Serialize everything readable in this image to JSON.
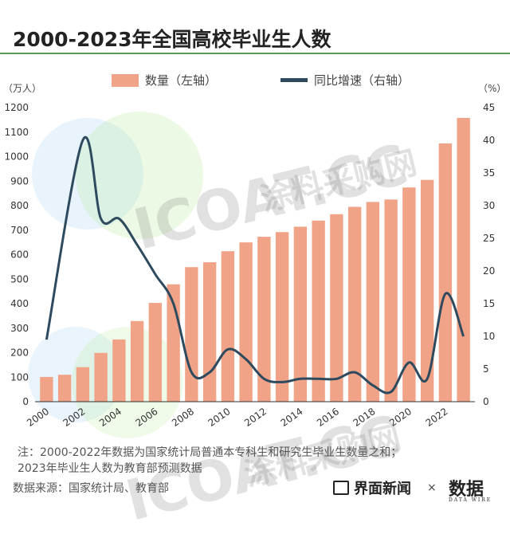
{
  "header": {
    "title": "2000-2023年全国高校毕业生人数"
  },
  "legend": {
    "bar_label": "数量（左轴）",
    "line_label": "同比增速（右轴）"
  },
  "axes": {
    "left_unit": "（万人）",
    "right_unit": "（%）"
  },
  "footnote": {
    "line1": "注：2000-2022年数据为国家统计局普通本专科生和研究生毕业生数量之和；",
    "line2": "2023年毕业生人数为教育部预测数据"
  },
  "source": "数据来源：国家统计局、教育部",
  "branding": {
    "name": "界面新闻",
    "times": "×",
    "logo_text": "数据",
    "logo_sub": "DATA WIRE"
  },
  "watermark": {
    "text1": "ICOAT.CC",
    "text2": "涂料采购网"
  },
  "colors": {
    "bar": "#f0a387",
    "line": "#2e4a5e",
    "accent_rule": "#5a9a5a"
  },
  "chart_data": {
    "type": "bar",
    "title": "2000-2023年全国高校毕业生人数",
    "categories": [
      "2000",
      "2001",
      "2002",
      "2003",
      "2004",
      "2005",
      "2006",
      "2007",
      "2008",
      "2009",
      "2010",
      "2011",
      "2012",
      "2013",
      "2014",
      "2015",
      "2016",
      "2017",
      "2018",
      "2019",
      "2020",
      "2021",
      "2022",
      "2023"
    ],
    "x_tick_labels": [
      "2000",
      "2002",
      "2004",
      "2006",
      "2008",
      "2010",
      "2012",
      "2014",
      "2016",
      "2018",
      "2020",
      "2022"
    ],
    "series": [
      {
        "name": "数量（左轴）",
        "type": "bar",
        "axis": "left",
        "values": [
          101,
          110,
          141,
          199,
          254,
          329,
          403,
          479,
          549,
          569,
          614,
          650,
          673,
          692,
          714,
          739,
          765,
          795,
          815,
          825,
          874,
          905,
          1054,
          1158
        ]
      },
      {
        "name": "同比增速（右轴）",
        "type": "line",
        "axis": "right",
        "values": [
          9.5,
          null,
          40.0,
          28.0,
          28.0,
          24.0,
          19.5,
          15.0,
          4.5,
          4.5,
          8.0,
          6.5,
          3.5,
          3.0,
          3.5,
          3.5,
          3.5,
          4.5,
          2.5,
          1.5,
          6.0,
          3.5,
          16.5,
          10.0
        ]
      }
    ],
    "ylim_left": [
      0,
      1200
    ],
    "yticks_left": [
      0,
      100,
      200,
      300,
      400,
      500,
      600,
      700,
      800,
      900,
      1000,
      1100,
      1200
    ],
    "ylim_right": [
      0,
      45
    ],
    "yticks_right": [
      0,
      5,
      10,
      15,
      20,
      25,
      30,
      35,
      40,
      45
    ],
    "grid": false,
    "legend_position": "top"
  }
}
